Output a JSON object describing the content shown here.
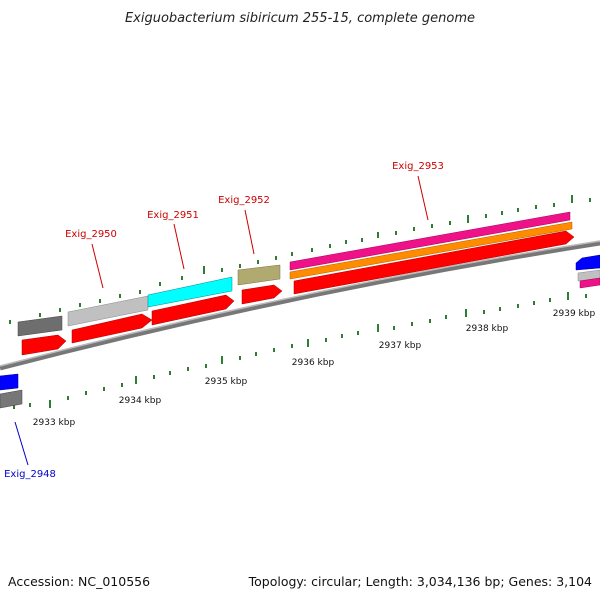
{
  "title": "Exiguobacterium sibiricum 255-15, complete genome",
  "footer": {
    "accession": "Accession: NC_010556",
    "summary": "Topology: circular; Length: 3,034,136 bp; Genes: 3,104"
  },
  "scale_labels": [
    "2933 kbp",
    "2934 kbp",
    "2935 kbp",
    "2936 kbp",
    "2937 kbp",
    "2938 kbp",
    "2939 kbp"
  ],
  "gene_labels": [
    {
      "id": "exig-2948",
      "text": "Exig_2948",
      "color": "#0000cc"
    },
    {
      "id": "exig-2950",
      "text": "Exig_2950",
      "color": "#cc0000"
    },
    {
      "id": "exig-2951",
      "text": "Exig_2951",
      "color": "#cc0000"
    },
    {
      "id": "exig-2952",
      "text": "Exig_2952",
      "color": "#cc0000"
    },
    {
      "id": "exig-2953",
      "text": "Exig_2953",
      "color": "#cc0000"
    }
  ],
  "colors": {
    "cds": "#ff0000",
    "backbone": "#888888",
    "tick": "#2e7d32",
    "blue_feature": "#0000ff",
    "cyan_feature": "#00ffff",
    "olive_feature": "#b0aa70",
    "magenta_feature": "#ee1188",
    "orange_feature": "#ff8c00",
    "gray_feature": "#777777",
    "lightgray_feature": "#c0c0c0"
  }
}
